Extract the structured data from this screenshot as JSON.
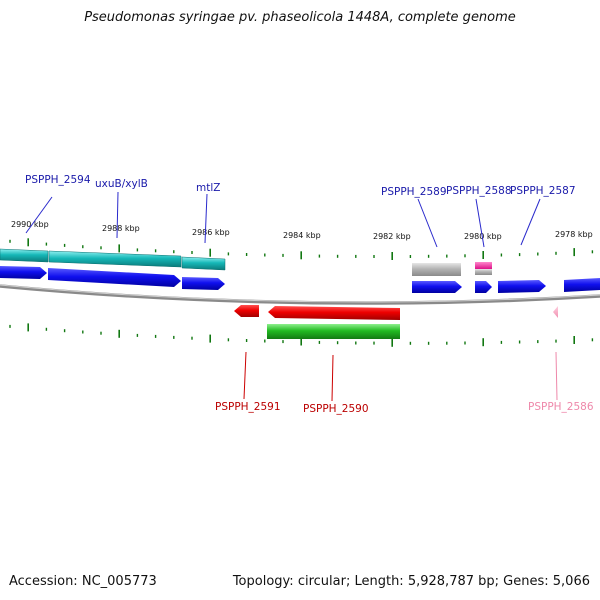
{
  "header": {
    "title": "Pseudomonas syringae pv. phaseolicola 1448A, complete genome"
  },
  "footer": {
    "accession_label": "Accession:",
    "accession": "NC_005773",
    "topology_label": "Topology:",
    "topology": "circular",
    "length_label": "Length:",
    "length": "5,928,787 bp",
    "genes_label": "Genes:",
    "genes": "5,066"
  },
  "scale": {
    "tick_labels": [
      "2990 kbp",
      "2988 kbp",
      "2986 kbp",
      "2984 kbp",
      "2982 kbp",
      "2980 kbp",
      "2978 kbp"
    ]
  },
  "genes": {
    "upper_labels": [
      "PSPPH_2594",
      "uxuB/xylB",
      "mtlZ",
      "PSPPH_2589",
      "PSPPH_2588",
      "PSPPH_2587"
    ],
    "lower_labels": [
      "PSPPH_2591",
      "PSPPH_2590",
      "PSPPH_2586"
    ]
  },
  "colors": {
    "forward_gene": "#1414f0",
    "reverse_gene": "#ee0000",
    "cds_forward": "#11b4b4",
    "cds_reverse": "#22bb22",
    "pseudo": "#b0b0b0",
    "rna": "#ee2299",
    "pale_gene": "#f4a0c0",
    "label_forward": "#1a1aaa",
    "label_reverse": "#bb0000",
    "label_pale": "#ee88aa",
    "backbone": "#888888",
    "tick": "#117711"
  }
}
